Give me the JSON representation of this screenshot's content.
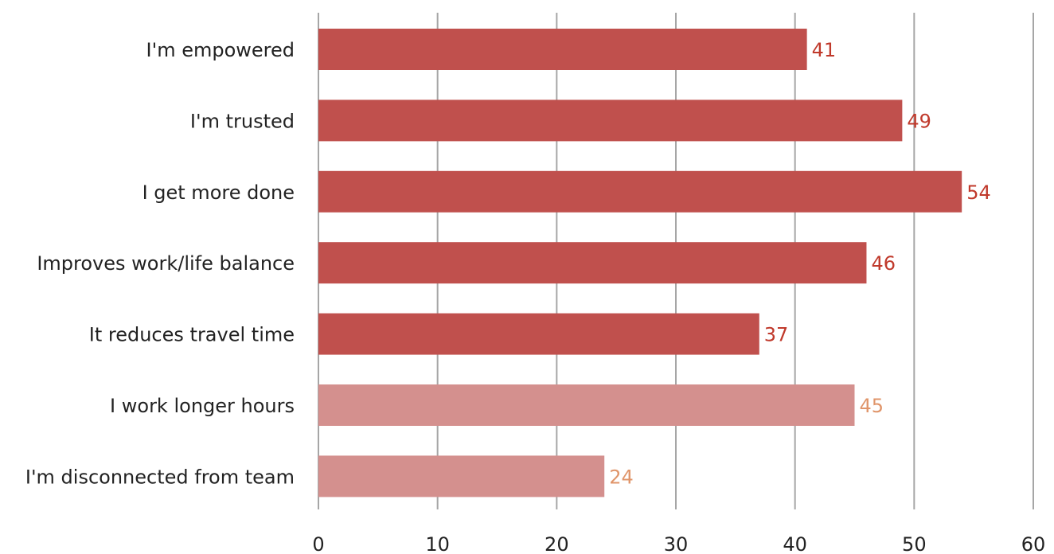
{
  "chart_data": {
    "type": "bar",
    "orientation": "horizontal",
    "categories": [
      "I'm empowered",
      "I'm trusted",
      "I get more done",
      "Improves work/life balance",
      "It reduces travel time",
      "I work longer hours",
      "I'm disconnected from team"
    ],
    "values": [
      41,
      49,
      54,
      46,
      37,
      45,
      24
    ],
    "xlim": [
      0,
      60
    ],
    "xticks": [
      0,
      10,
      20,
      30,
      40,
      50,
      60
    ],
    "grid": true,
    "colors": {
      "positive_bar": "#c0504d",
      "negative_bar": "#d4908e",
      "positive_label": "#c0392b",
      "negative_label": "#e0956a",
      "grid": "#a6a6a6"
    },
    "bar_groups": [
      "positive",
      "positive",
      "positive",
      "positive",
      "positive",
      "negative",
      "negative"
    ]
  }
}
